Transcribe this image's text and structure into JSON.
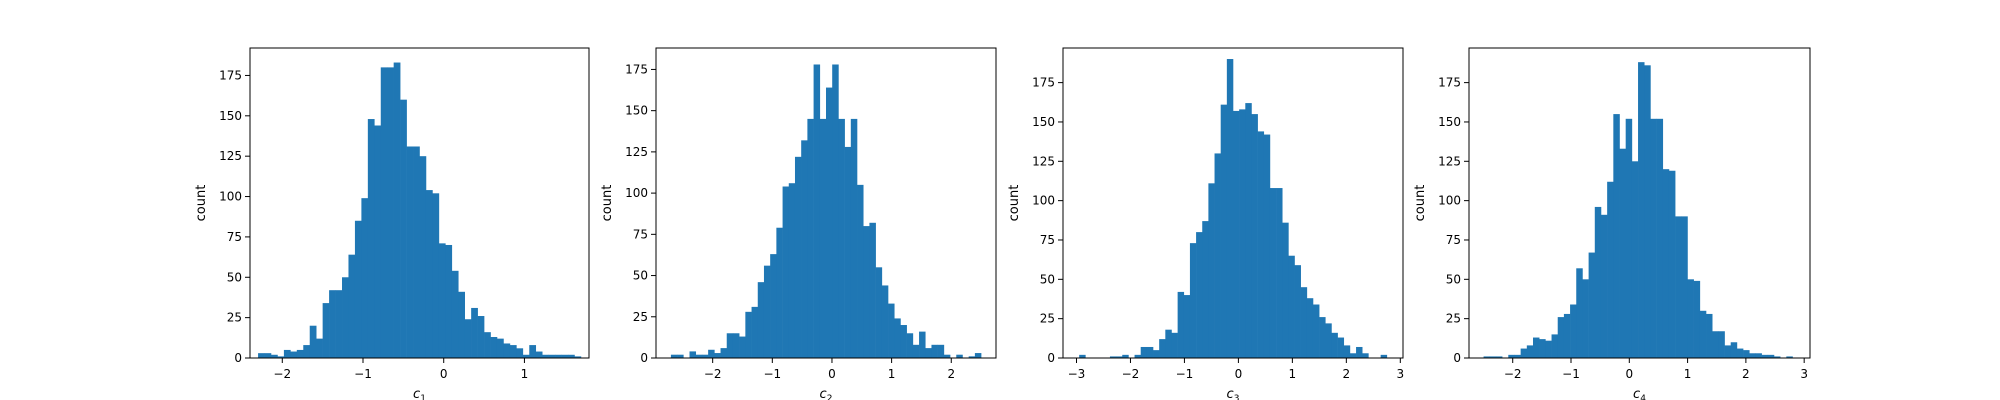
{
  "chart_data": [
    {
      "type": "bar",
      "chart_kind": "histogram",
      "xlabel_base": "c",
      "xlabel_sub": "1",
      "ylabel": "count",
      "color": "#1f77b4",
      "xlim": [
        -2.4,
        1.8
      ],
      "ylim": [
        0,
        192
      ],
      "bin_start": -2.3,
      "bin_width": 0.08,
      "values": [
        3,
        3,
        2,
        1,
        5,
        4,
        5,
        8,
        20,
        12,
        34,
        42,
        42,
        50,
        64,
        85,
        99,
        148,
        144,
        180,
        180,
        183,
        160,
        131,
        131,
        125,
        104,
        102,
        71,
        70,
        54,
        41,
        24,
        31,
        26,
        16,
        13,
        12,
        9,
        8,
        6,
        2,
        8,
        4,
        2,
        2,
        2,
        2,
        2,
        1
      ],
      "xticks": [
        -2,
        -1,
        0,
        1
      ],
      "xtick_labels": [
        "−2",
        "−1",
        "0",
        "1"
      ],
      "yticks": [
        0,
        25,
        50,
        75,
        100,
        125,
        150,
        175
      ],
      "ytick_labels": [
        "0",
        "25",
        "50",
        "75",
        "100",
        "125",
        "150",
        "175"
      ]
    },
    {
      "type": "bar",
      "chart_kind": "histogram",
      "xlabel_base": "c",
      "xlabel_sub": "2",
      "ylabel": "count",
      "color": "#1f77b4",
      "xlim": [
        -2.95,
        2.75
      ],
      "ylim": [
        0,
        188
      ],
      "bin_start": -2.7,
      "bin_width": 0.104,
      "values": [
        2,
        2,
        0,
        4,
        2,
        2,
        5,
        3,
        6,
        15,
        15,
        13,
        28,
        31,
        46,
        56,
        63,
        79,
        104,
        106,
        122,
        132,
        145,
        178,
        145,
        164,
        178,
        145,
        128,
        145,
        105,
        80,
        82,
        55,
        44,
        33,
        24,
        20,
        15,
        8,
        16,
        6,
        8,
        8,
        2,
        0,
        2,
        0,
        1,
        3
      ],
      "xticks": [
        -2,
        -1,
        0,
        1,
        2
      ],
      "xtick_labels": [
        "−2",
        "−1",
        "0",
        "1",
        "2"
      ],
      "yticks": [
        0,
        25,
        50,
        75,
        100,
        125,
        150,
        175
      ],
      "ytick_labels": [
        "0",
        "25",
        "50",
        "75",
        "100",
        "125",
        "150",
        "175"
      ]
    },
    {
      "type": "bar",
      "chart_kind": "histogram",
      "xlabel_base": "c",
      "xlabel_sub": "3",
      "ylabel": "count",
      "color": "#1f77b4",
      "xlim": [
        -3.25,
        3.05
      ],
      "ylim": [
        0,
        197
      ],
      "bin_start": -2.95,
      "bin_width": 0.114,
      "values": [
        2,
        0,
        0,
        0,
        0,
        1,
        1,
        2,
        0,
        2,
        7,
        7,
        5,
        12,
        18,
        16,
        42,
        40,
        73,
        80,
        87,
        111,
        130,
        161,
        190,
        157,
        158,
        162,
        155,
        144,
        142,
        108,
        108,
        86,
        65,
        59,
        45,
        38,
        34,
        26,
        22,
        16,
        13,
        8,
        3,
        7,
        3,
        0,
        0,
        2
      ],
      "xticks": [
        -3,
        -2,
        -1,
        0,
        1,
        2,
        3
      ],
      "xtick_labels": [
        "−3",
        "−2",
        "−1",
        "0",
        "1",
        "2",
        "3"
      ],
      "yticks": [
        0,
        25,
        50,
        75,
        100,
        125,
        150,
        175
      ],
      "ytick_labels": [
        "0",
        "25",
        "50",
        "75",
        "100",
        "125",
        "150",
        "175"
      ]
    },
    {
      "type": "bar",
      "chart_kind": "histogram",
      "xlabel_base": "c",
      "xlabel_sub": "4",
      "ylabel": "count",
      "color": "#1f77b4",
      "xlim": [
        -2.75,
        3.1
      ],
      "ylim": [
        0,
        197
      ],
      "bin_start": -2.5,
      "bin_width": 0.106,
      "values": [
        1,
        1,
        1,
        0,
        2,
        2,
        6,
        8,
        13,
        12,
        11,
        15,
        26,
        28,
        34,
        57,
        50,
        67,
        96,
        91,
        112,
        155,
        133,
        152,
        125,
        188,
        186,
        152,
        152,
        120,
        119,
        90,
        90,
        50,
        49,
        30,
        28,
        17,
        17,
        8,
        10,
        6,
        5,
        3,
        3,
        2,
        2,
        1,
        0,
        1
      ],
      "xticks": [
        -2,
        -1,
        0,
        1,
        2,
        3
      ],
      "xtick_labels": [
        "−2",
        "−1",
        "0",
        "1",
        "2",
        "3"
      ],
      "yticks": [
        0,
        25,
        50,
        75,
        100,
        125,
        150,
        175
      ],
      "ytick_labels": [
        "0",
        "25",
        "50",
        "75",
        "100",
        "125",
        "150",
        "175"
      ]
    }
  ]
}
